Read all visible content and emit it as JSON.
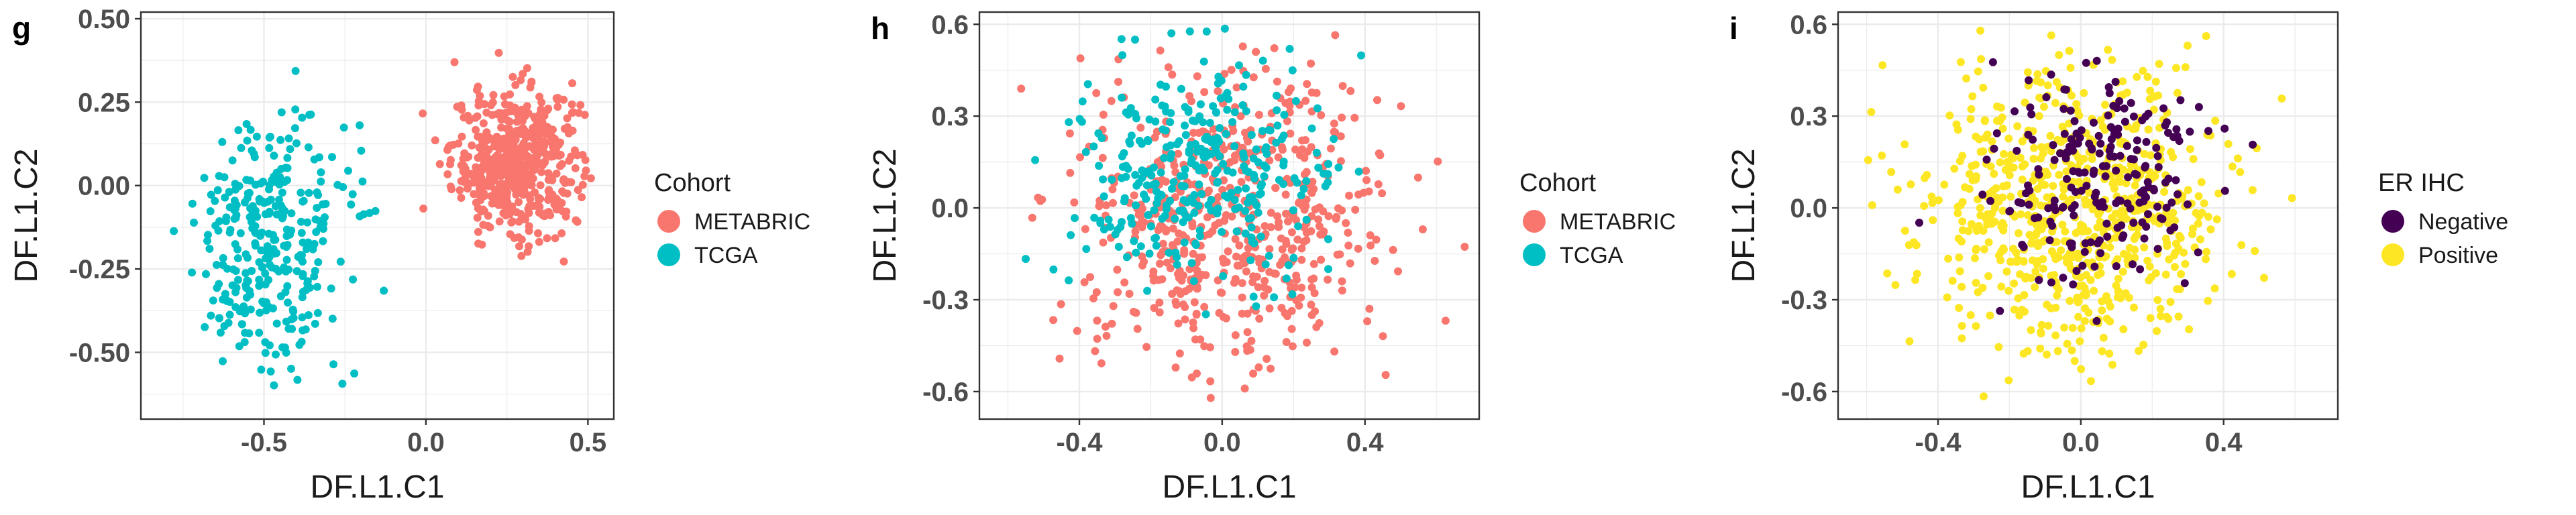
{
  "colors": {
    "metabric": "#F8766D",
    "tcga": "#00BFC4",
    "negative": "#440154",
    "positive": "#FDE725"
  },
  "chart_data": [
    {
      "panel": "g",
      "type": "scatter",
      "xlabel": "DF.L1.C1",
      "ylabel": "DF.L1.C2",
      "xlim": [
        -0.88,
        0.58
      ],
      "ylim": [
        -0.7,
        0.52
      ],
      "xticks": [
        -0.5,
        0.0,
        0.5
      ],
      "xtick_labels": [
        "-0.5",
        "0.0",
        "0.5"
      ],
      "yticks": [
        -0.5,
        -0.25,
        0.0,
        0.25,
        0.5
      ],
      "ytick_labels": [
        "-0.50",
        "-0.25",
        "0.00",
        "0.25",
        "0.50"
      ],
      "grid": true,
      "legend_position": "right",
      "legend": {
        "title": "Cohort",
        "entries": [
          {
            "label": "METABRIC",
            "color": "#F8766D"
          },
          {
            "label": "TCGA",
            "color": "#00BFC4"
          }
        ]
      },
      "series": [
        {
          "name": "METABRIC",
          "color": "#F8766D",
          "n": 520,
          "x_mean": 0.28,
          "x_sd": 0.1,
          "y_mean": 0.07,
          "y_sd": 0.11,
          "x_range": [
            -0.04,
            0.52
          ],
          "y_range": [
            -0.24,
            0.5
          ]
        },
        {
          "name": "TCGA",
          "color": "#00BFC4",
          "n": 330,
          "x_mean": -0.48,
          "x_sd": 0.12,
          "y_mean": -0.18,
          "y_sd": 0.18,
          "x_range": [
            -0.85,
            -0.06
          ],
          "y_range": [
            -0.68,
            0.36
          ]
        }
      ]
    },
    {
      "panel": "h",
      "type": "scatter",
      "xlabel": "DF.L1.C1",
      "ylabel": "DF.L1.C2",
      "xlim": [
        -0.68,
        0.72
      ],
      "ylim": [
        -0.69,
        0.64
      ],
      "xticks": [
        -0.4,
        0.0,
        0.4
      ],
      "xtick_labels": [
        "-0.4",
        "0.0",
        "0.4"
      ],
      "yticks": [
        -0.6,
        -0.3,
        0.0,
        0.3,
        0.6
      ],
      "ytick_labels": [
        "-0.6",
        "-0.3",
        "0.0",
        "0.3",
        "0.6"
      ],
      "grid": true,
      "legend_position": "right",
      "legend": {
        "title": "Cohort",
        "entries": [
          {
            "label": "METABRIC",
            "color": "#F8766D"
          },
          {
            "label": "TCGA",
            "color": "#00BFC4"
          }
        ]
      },
      "series": [
        {
          "name": "METABRIC",
          "color": "#F8766D",
          "n": 600,
          "x_mean": 0.02,
          "x_sd": 0.22,
          "y_mean": -0.04,
          "y_sd": 0.24,
          "x_range": [
            -0.6,
            0.68
          ],
          "y_range": [
            -0.63,
            0.58
          ]
        },
        {
          "name": "TCGA",
          "color": "#00BFC4",
          "n": 330,
          "x_mean": -0.08,
          "x_sd": 0.18,
          "y_mean": 0.12,
          "y_sd": 0.18,
          "x_range": [
            -0.6,
            0.4
          ],
          "y_range": [
            -0.45,
            0.6
          ]
        }
      ]
    },
    {
      "panel": "i",
      "type": "scatter",
      "xlabel": "DF.L1.C1",
      "ylabel": "DF.L1.C2",
      "xlim": [
        -0.68,
        0.72
      ],
      "ylim": [
        -0.69,
        0.64
      ],
      "xticks": [
        -0.4,
        0.0,
        0.4
      ],
      "xtick_labels": [
        "-0.4",
        "0.0",
        "0.4"
      ],
      "yticks": [
        -0.6,
        -0.3,
        0.0,
        0.3,
        0.6
      ],
      "ytick_labels": [
        "-0.6",
        "-0.3",
        "0.0",
        "0.3",
        "0.6"
      ],
      "grid": true,
      "legend_position": "right",
      "legend": {
        "title": "ER IHC",
        "entries": [
          {
            "label": "Negative",
            "color": "#440154"
          },
          {
            "label": "Positive",
            "color": "#FDE725"
          }
        ]
      },
      "series": [
        {
          "name": "Positive",
          "color": "#FDE725",
          "n": 720,
          "x_mean": -0.02,
          "x_sd": 0.21,
          "y_mean": 0.0,
          "y_sd": 0.23,
          "x_range": [
            -0.6,
            0.68
          ],
          "y_range": [
            -0.63,
            0.6
          ]
        },
        {
          "name": "Negative",
          "color": "#440154",
          "n": 210,
          "x_mean": 0.06,
          "x_sd": 0.15,
          "y_mean": 0.1,
          "y_sd": 0.16,
          "x_range": [
            -0.48,
            0.62
          ],
          "y_range": [
            -0.57,
            0.52
          ]
        }
      ]
    }
  ]
}
